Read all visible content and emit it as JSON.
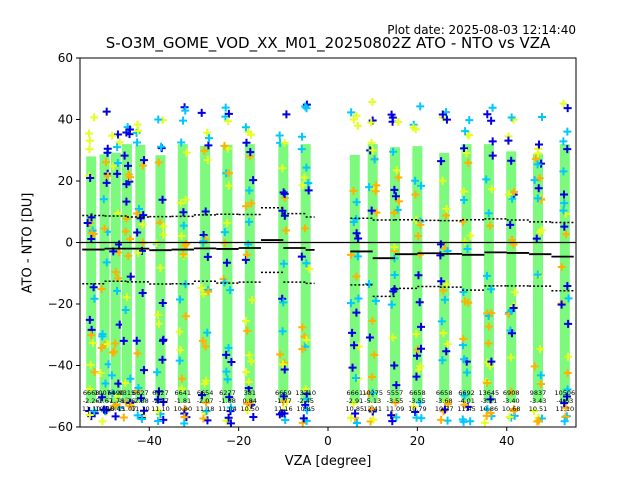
{
  "chart_data": {
    "type": "scatter",
    "plot_date": "Plot date: 2025-08-03 12:14:40",
    "title": "S-O3M_GOME_VOD_XX_M01_20250802Z ATO - NTO vs VZA",
    "xlabel": "VZA [degree]",
    "ylabel": "ATO - NTO [DU]",
    "xlim": [
      -55.5,
      55.5
    ],
    "ylim": [
      -60,
      60
    ],
    "xticks": [
      -40,
      -20,
      0,
      20,
      40
    ],
    "yticks": [
      -60,
      -40,
      -20,
      0,
      20,
      40,
      60
    ],
    "xtick_labels": [
      "−40",
      "−20",
      "0",
      "20",
      "40"
    ],
    "ytick_labels": [
      "−60",
      "−40",
      "−20",
      "0",
      "20",
      "40",
      "60"
    ],
    "grid": false,
    "zero_line": 0,
    "colors": {
      "dense": "#7dfa7d",
      "cyan": "#00c8ff",
      "yellow": "#e4ff20",
      "orange": "#ffb000",
      "blue": "#0000e0",
      "line": "#000000"
    },
    "bins": [
      {
        "x": -53,
        "count": 6668,
        "mean": -2.26,
        "std": 11.1
      },
      {
        "x": -50,
        "count": 10074,
        "mean": -1.67,
        "std": 10.96
      },
      {
        "x": -47.5,
        "count": 6490,
        "mean": -1.78,
        "std": 10.45
      },
      {
        "x": -45,
        "count": 9315,
        "mean": -1.76,
        "std": 11.07
      },
      {
        "x": -42,
        "count": 6627,
        "mean": -2.38,
        "std": 11.1
      },
      {
        "x": -37.5,
        "count": 6627,
        "mean": -2.27,
        "std": 11.1
      },
      {
        "x": -32.5,
        "count": 6641,
        "mean": -1.81,
        "std": 10.8
      },
      {
        "x": -27.5,
        "count": 6654,
        "mean": -2.07,
        "std": 11.18
      },
      {
        "x": -22.5,
        "count": 6277,
        "mean": -1.88,
        "std": 11.04
      },
      {
        "x": -17.5,
        "count": 381,
        "mean": 0.84,
        "std": 10.5
      },
      {
        "x": -10,
        "count": 6659,
        "mean": -1.77,
        "std": 11.16
      },
      {
        "x": -5,
        "count": 13310,
        "mean": -2.45,
        "std": 10.85
      },
      {
        "x": 6,
        "count": 6661,
        "mean": -2.91,
        "std": 10.85
      },
      {
        "x": 10,
        "count": 10275,
        "mean": -5.13,
        "std": 12.41
      },
      {
        "x": 15,
        "count": 5557,
        "mean": -3.55,
        "std": 11.09
      },
      {
        "x": 20,
        "count": 6658,
        "mean": -3.55,
        "std": 10.79
      },
      {
        "x": 26,
        "count": 6658,
        "mean": -3.68,
        "std": 10.77
      },
      {
        "x": 31,
        "count": 6692,
        "mean": -4.01,
        "std": 11.45
      },
      {
        "x": 36,
        "count": 13645,
        "mean": -3.21,
        "std": 10.86
      },
      {
        "x": 41,
        "count": 6908,
        "mean": -3.4,
        "std": 10.68
      },
      {
        "x": 47,
        "count": 9837,
        "mean": -3.43,
        "std": 10.51
      },
      {
        "x": 53,
        "count": 10506,
        "mean": -4.63,
        "std": 11.1
      }
    ],
    "mean_line": [
      {
        "x0": -55,
        "x1": -50,
        "y": -2.3
      },
      {
        "x0": -50,
        "x1": -45,
        "y": -2.0
      },
      {
        "x0": -45,
        "x1": -40,
        "y": -2.0
      },
      {
        "x0": -40,
        "x1": -35,
        "y": -2.5
      },
      {
        "x0": -35,
        "x1": -30,
        "y": -2.3
      },
      {
        "x0": -30,
        "x1": -25,
        "y": -1.9
      },
      {
        "x0": -25,
        "x1": -20,
        "y": -2.1
      },
      {
        "x0": -20,
        "x1": -15,
        "y": -1.8
      },
      {
        "x0": -15,
        "x1": -10,
        "y": 0.8
      },
      {
        "x0": -10,
        "x1": -5,
        "y": -1.8
      },
      {
        "x0": -5,
        "x1": -3,
        "y": -2.4
      },
      {
        "x0": 5,
        "x1": 10,
        "y": -2.9
      },
      {
        "x0": 10,
        "x1": 15,
        "y": -5.1
      },
      {
        "x0": 15,
        "x1": 20,
        "y": -3.8
      },
      {
        "x0": 20,
        "x1": 25,
        "y": -3.5
      },
      {
        "x0": 25,
        "x1": 30,
        "y": -3.7
      },
      {
        "x0": 30,
        "x1": 35,
        "y": -4.0
      },
      {
        "x0": 35,
        "x1": 40,
        "y": -3.2
      },
      {
        "x0": 40,
        "x1": 45,
        "y": -3.4
      },
      {
        "x0": 45,
        "x1": 50,
        "y": -3.8
      },
      {
        "x0": 50,
        "x1": 55,
        "y": -4.6
      }
    ],
    "upper_std_line": [
      {
        "x0": -55,
        "x1": -50,
        "y": 8.8
      },
      {
        "x0": -50,
        "x1": -45,
        "y": 8.6
      },
      {
        "x0": -45,
        "x1": -40,
        "y": 8.3
      },
      {
        "x0": -40,
        "x1": -35,
        "y": 8.4
      },
      {
        "x0": -35,
        "x1": -30,
        "y": 8.5
      },
      {
        "x0": -30,
        "x1": -25,
        "y": 9.0
      },
      {
        "x0": -25,
        "x1": -20,
        "y": 9.2
      },
      {
        "x0": -20,
        "x1": -15,
        "y": 9.1
      },
      {
        "x0": -15,
        "x1": -10,
        "y": 11.3
      },
      {
        "x0": -10,
        "x1": -5,
        "y": 9.4
      },
      {
        "x0": -5,
        "x1": -3,
        "y": 8.3
      },
      {
        "x0": 5,
        "x1": 10,
        "y": 7.9
      },
      {
        "x0": 10,
        "x1": 15,
        "y": 7.3
      },
      {
        "x0": 15,
        "x1": 20,
        "y": 7.4
      },
      {
        "x0": 20,
        "x1": 25,
        "y": 7.2
      },
      {
        "x0": 25,
        "x1": 30,
        "y": 7.1
      },
      {
        "x0": 30,
        "x1": 35,
        "y": 7.4
      },
      {
        "x0": 35,
        "x1": 40,
        "y": 7.7
      },
      {
        "x0": 40,
        "x1": 45,
        "y": 7.3
      },
      {
        "x0": 45,
        "x1": 50,
        "y": 6.7
      },
      {
        "x0": 50,
        "x1": 55,
        "y": 6.5
      }
    ],
    "lower_std_line": [
      {
        "x0": -55,
        "x1": -50,
        "y": -13.4
      },
      {
        "x0": -50,
        "x1": -45,
        "y": -12.6
      },
      {
        "x0": -45,
        "x1": -40,
        "y": -12.8
      },
      {
        "x0": -40,
        "x1": -35,
        "y": -13.5
      },
      {
        "x0": -35,
        "x1": -30,
        "y": -13.4
      },
      {
        "x0": -30,
        "x1": -25,
        "y": -12.6
      },
      {
        "x0": -25,
        "x1": -20,
        "y": -13.2
      },
      {
        "x0": -20,
        "x1": -15,
        "y": -12.9
      },
      {
        "x0": -15,
        "x1": -10,
        "y": -9.7
      },
      {
        "x0": -10,
        "x1": -5,
        "y": -12.9
      },
      {
        "x0": -5,
        "x1": -3,
        "y": -13.3
      },
      {
        "x0": 5,
        "x1": 10,
        "y": -13.8
      },
      {
        "x0": 10,
        "x1": 15,
        "y": -17.5
      },
      {
        "x0": 15,
        "x1": 20,
        "y": -14.9
      },
      {
        "x0": 20,
        "x1": 25,
        "y": -14.3
      },
      {
        "x0": 25,
        "x1": 30,
        "y": -14.5
      },
      {
        "x0": 30,
        "x1": 35,
        "y": -15.5
      },
      {
        "x0": 35,
        "x1": 40,
        "y": -14.1
      },
      {
        "x0": 40,
        "x1": 45,
        "y": -14.1
      },
      {
        "x0": 45,
        "x1": 50,
        "y": -14.2
      },
      {
        "x0": 50,
        "x1": 55,
        "y": -15.7
      }
    ]
  }
}
